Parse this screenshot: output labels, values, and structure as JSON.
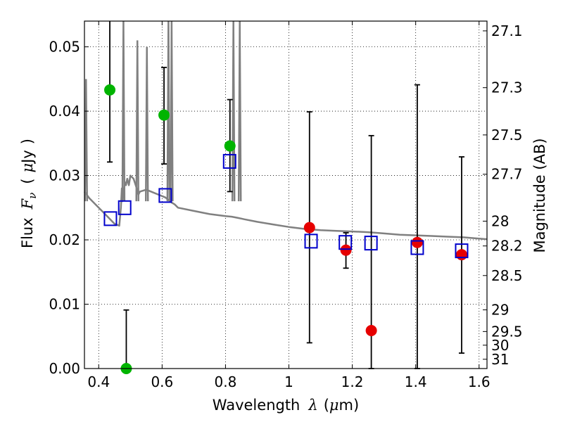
{
  "chart_data": {
    "type": "scatter",
    "title": "",
    "xlabel": "Wavelength",
    "xlabel_symbol": "λ",
    "xlabel_unit_open": "(",
    "xlabel_unit_mu": "μ",
    "xlabel_unit_rest": "m)",
    "ylabel": "Flux",
    "ylabel_symbol": "F",
    "ylabel_subscript": "ν",
    "ylabel_unit_open": "(",
    "ylabel_unit_mu": "μ",
    "ylabel_unit_rest": "Jy",
    "ylabel_unit_close": ")",
    "y2label": "Magnitude (AB)",
    "xlim": [
      0.355,
      1.625
    ],
    "ylim": [
      0.0,
      0.054
    ],
    "grid": true,
    "x_ticks": [
      0.4,
      0.6,
      0.8,
      1.0,
      1.2,
      1.4,
      1.6
    ],
    "x_tick_labels": [
      "0.4",
      "0.6",
      "0.8",
      "1",
      "1.2",
      "1.4",
      "1.6"
    ],
    "y_ticks": [
      0.0,
      0.01,
      0.02,
      0.03,
      0.04,
      0.05
    ],
    "y_tick_labels": [
      "0.00",
      "0.01",
      "0.02",
      "0.03",
      "0.04",
      "0.05"
    ],
    "mag_ticks": [
      27.1,
      27.3,
      27.5,
      27.7,
      28,
      28.2,
      28.5,
      29,
      29.5,
      30,
      31
    ],
    "mag_tick_labels": [
      "27.1",
      "27.3",
      "27.5",
      "27.7",
      "28",
      "28.2",
      "28.5",
      "29",
      "29.5",
      "30",
      "31"
    ],
    "series": [
      {
        "name": "model_spectrum",
        "kind": "line",
        "color": "#808080",
        "x": [
          0.355,
          0.37,
          0.39,
          0.41,
          0.43,
          0.45,
          0.465,
          0.47,
          0.473,
          0.475,
          0.478,
          0.482,
          0.486,
          0.49,
          0.495,
          0.5,
          0.51,
          0.52,
          0.525,
          0.53,
          0.55,
          0.57,
          0.59,
          0.6,
          0.61,
          0.615,
          0.62,
          0.625,
          0.63,
          0.64,
          0.65,
          0.7,
          0.75,
          0.8,
          0.82,
          0.83,
          0.84,
          0.85,
          0.86,
          0.9,
          0.95,
          1.0,
          1.05,
          1.1,
          1.15,
          1.2,
          1.25,
          1.3,
          1.35,
          1.4,
          1.45,
          1.5,
          1.55,
          1.6,
          1.625
        ],
        "y": [
          0.0275,
          0.0265,
          0.0255,
          0.0245,
          0.0235,
          0.0225,
          0.0222,
          0.025,
          0.028,
          0.026,
          0.027,
          0.029,
          0.0285,
          0.0295,
          0.0285,
          0.03,
          0.0295,
          0.028,
          0.027,
          0.0275,
          0.0278,
          0.0274,
          0.027,
          0.0268,
          0.0266,
          0.0264,
          0.0262,
          0.026,
          0.0258,
          0.0255,
          0.025,
          0.0245,
          0.024,
          0.0237,
          0.0236,
          0.0235,
          0.0234,
          0.0233,
          0.0232,
          0.0228,
          0.0224,
          0.022,
          0.0217,
          0.0215,
          0.0214,
          0.0213,
          0.0212,
          0.021,
          0.0208,
          0.0207,
          0.0206,
          0.0205,
          0.0204,
          0.0202,
          0.0201
        ]
      },
      {
        "name": "model_emission_lines",
        "kind": "spikes",
        "color": "#808080",
        "x": [
          0.36,
          0.478,
          0.522,
          0.552,
          0.62,
          0.63,
          0.825,
          0.845
        ],
        "y_top": [
          0.045,
          0.054,
          0.051,
          0.05,
          0.054,
          0.054,
          0.054,
          0.054
        ]
      },
      {
        "name": "observed_upper_limits",
        "kind": "points",
        "color": "#00b400",
        "x": [
          0.435,
          0.487,
          0.606,
          0.814
        ],
        "y": [
          0.0433,
          0.0,
          0.0394,
          0.0346
        ],
        "yerr_low": [
          0.0321,
          0.0,
          0.0318,
          0.0275
        ],
        "yerr_high": [
          0.054,
          0.0091,
          0.0468,
          0.0418
        ]
      },
      {
        "name": "observed_detections",
        "kind": "points",
        "color": "#e60000",
        "x": [
          1.065,
          1.18,
          1.26,
          1.405,
          1.545
        ],
        "y": [
          0.0219,
          0.0184,
          0.0059,
          0.0196,
          0.0177
        ],
        "yerr_low": [
          0.004,
          0.0156,
          0.0,
          0.0,
          0.0024
        ],
        "yerr_high": [
          0.0399,
          0.0211,
          0.0362,
          0.0441,
          0.0329
        ]
      },
      {
        "name": "model_photometry",
        "kind": "open_squares",
        "color": "#0000cc",
        "x": [
          0.437,
          0.482,
          0.61,
          0.813,
          1.07,
          1.178,
          1.259,
          1.405,
          1.545
        ],
        "y": [
          0.0233,
          0.025,
          0.0269,
          0.0322,
          0.0198,
          0.0196,
          0.0195,
          0.0188,
          0.0183
        ]
      }
    ]
  }
}
